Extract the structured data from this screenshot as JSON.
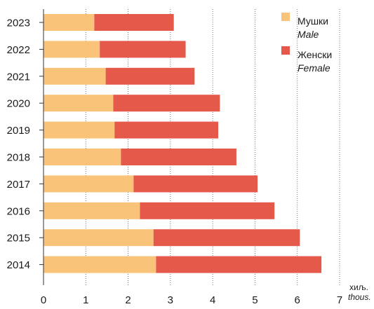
{
  "chart_data": {
    "type": "bar",
    "orientation": "horizontal",
    "stacked": true,
    "categories": [
      "2023",
      "2022",
      "2021",
      "2020",
      "2019",
      "2018",
      "2017",
      "2016",
      "2015",
      "2014"
    ],
    "series": [
      {
        "name": "Мушки",
        "name_alt": "Male",
        "color": "#f9c37a",
        "values": [
          1.2,
          1.33,
          1.47,
          1.65,
          1.68,
          1.83,
          2.13,
          2.28,
          2.6,
          2.66
        ]
      },
      {
        "name": "Женски",
        "name_alt": "Female",
        "color": "#e5594a",
        "values": [
          1.88,
          2.03,
          2.1,
          2.52,
          2.45,
          2.73,
          2.93,
          3.18,
          3.46,
          3.91
        ]
      }
    ],
    "xlim": [
      0,
      7
    ],
    "x_ticks": [
      "0",
      "1",
      "2",
      "3",
      "4",
      "5",
      "6",
      "7"
    ],
    "x_unit": "хиљ.",
    "x_unit_alt": "thous.",
    "grid": "vertical dashed",
    "legend_position": "top-right"
  }
}
